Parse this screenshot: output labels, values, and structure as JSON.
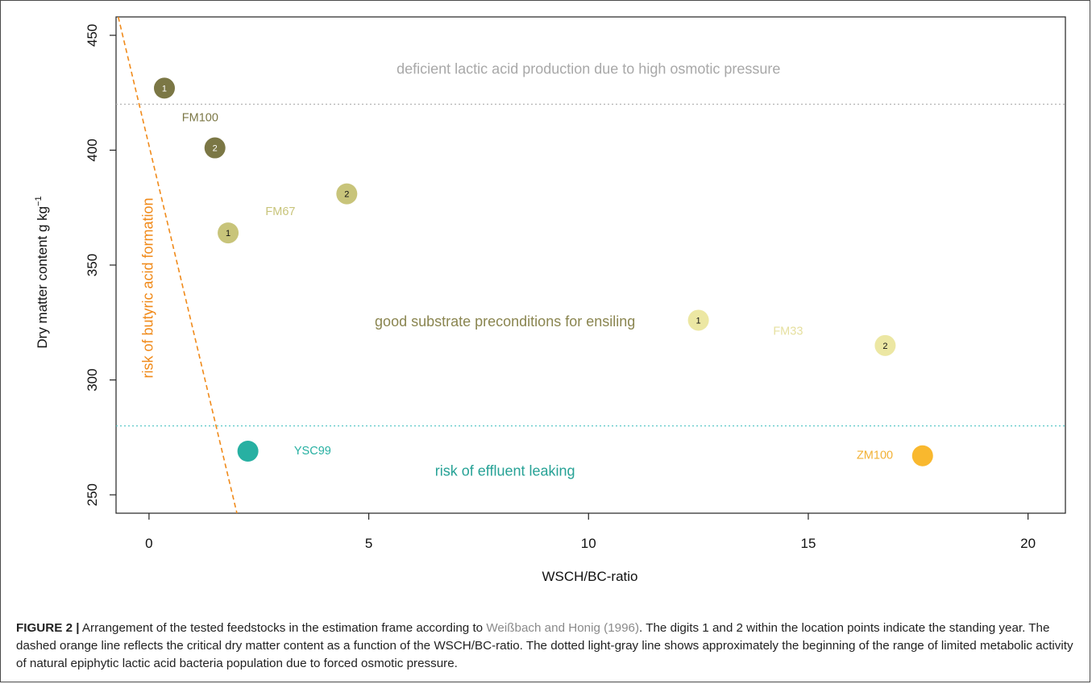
{
  "chart_data": {
    "type": "scatter",
    "xlabel": "WSCH/BC-ratio",
    "ylabel_main": "Dry matter content g kg",
    "ylabel_sup": "−1",
    "xlim": [
      -0.75,
      20.85
    ],
    "ylim": [
      242,
      458
    ],
    "x_ticks": [
      0,
      5,
      10,
      15,
      20
    ],
    "y_ticks": [
      250,
      300,
      350,
      400,
      450
    ],
    "grid": false,
    "points": [
      {
        "series": "FM100",
        "year": "1",
        "x": 0.35,
        "y": 427,
        "color": "#7b7745"
      },
      {
        "series": "FM100",
        "year": "2",
        "x": 1.5,
        "y": 401,
        "color": "#7b7745"
      },
      {
        "series": "FM67",
        "year": "1",
        "x": 1.8,
        "y": 364,
        "color": "#c8c47a"
      },
      {
        "series": "FM67",
        "year": "2",
        "x": 4.5,
        "y": 381,
        "color": "#c8c47a"
      },
      {
        "series": "FM33",
        "year": "1",
        "x": 12.5,
        "y": 326,
        "color": "#ece7a3"
      },
      {
        "series": "FM33",
        "year": "2",
        "x": 16.75,
        "y": 315,
        "color": "#ece7a3"
      },
      {
        "series": "YSC99",
        "year": "",
        "x": 2.25,
        "y": 269,
        "color": "#27b0a2"
      },
      {
        "series": "ZM100",
        "year": "",
        "x": 17.6,
        "y": 267,
        "color": "#f9b82e"
      }
    ],
    "series_labels": [
      {
        "text": "FM100",
        "x": 0.75,
        "y": 414,
        "color": "#7b7745"
      },
      {
        "text": "FM67",
        "x": 2.65,
        "y": 373,
        "color": "#c8c47a"
      },
      {
        "text": "FM33",
        "x": 14.2,
        "y": 321,
        "color": "#e6e0a0"
      },
      {
        "text": "YSC99",
        "x": 3.3,
        "y": 269,
        "color": "#27b0a2"
      },
      {
        "text": "ZM100",
        "x": 16.1,
        "y": 267,
        "color": "#f2b135"
      }
    ],
    "annotations": [
      {
        "text": "deficient lactic acid production due to high osmotic pressure",
        "x": 10,
        "y": 435,
        "color": "#a8a8a8",
        "rotate": 0
      },
      {
        "text": "good substrate preconditions for ensiling",
        "x": 8.1,
        "y": 325,
        "color": "#8a8550",
        "rotate": 0
      },
      {
        "text": "risk of effluent leaking",
        "x": 8.1,
        "y": 260,
        "color": "#27a296",
        "rotate": 0
      },
      {
        "text": "risk of butyric acid formation",
        "x": 0,
        "y": 340,
        "color": "#f08a1a",
        "rotate": -90
      }
    ],
    "reference_lines": [
      {
        "kind": "horizontal",
        "y": 420,
        "style": "dotted",
        "color": "#b5b5b5",
        "meaning": "osmotic pressure limit"
      },
      {
        "kind": "horizontal",
        "y": 280,
        "style": "dotted",
        "color": "#5cc8c8",
        "meaning": "effluent limit"
      },
      {
        "kind": "segment",
        "x1": -0.7,
        "y1": 458,
        "x2": 2.0,
        "y2": 242,
        "style": "dashed",
        "color": "#f08a1a",
        "meaning": "critical dry matter content"
      }
    ]
  },
  "caption": {
    "lead": "FIGURE 2 |",
    "part1": " Arrangement of the tested feedstocks in the estimation frame according to ",
    "citation": "Weißbach and Honig (1996)",
    "part2": ". The digits 1 and 2 within the location points indicate the standing year. The dashed orange line reflects the critical dry matter content as a function of the WSCH/BC-ratio. The dotted light-gray line shows approximately the beginning of the range of limited metabolic activity of natural epiphytic lactic acid bacteria population due to forced osmotic pressure."
  }
}
